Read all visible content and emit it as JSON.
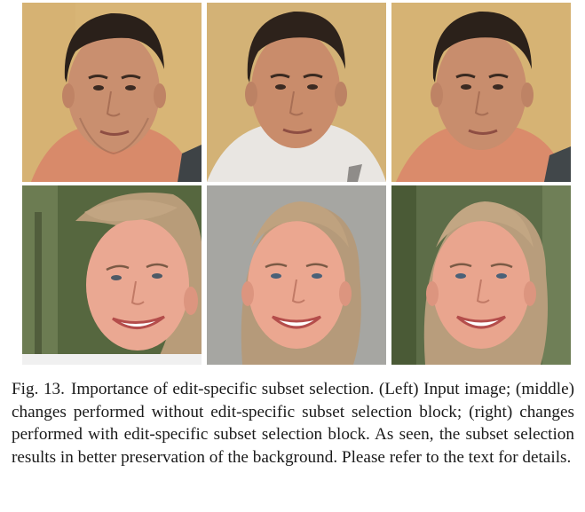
{
  "figure": {
    "label": "Fig. 13.",
    "caption": "Importance of edit-specific subset selection. (Left) Input image; (middle) changes performed without edit-specific subset selection block; (right) changes performed with edit-specific subset selection block. As seen, the subset selection results in better preservation of the background. Please refer to the text for details.",
    "columns": [
      "Input image",
      "without edit-specific subset selection block",
      "with edit-specific subset selection block"
    ],
    "rows": [
      "man portrait",
      "woman portrait"
    ],
    "colors": {
      "man_bg_warm": "#d9b77a",
      "man_bg_light": "#cfae71",
      "man_shirt_salmon": "#d98a6b",
      "man_shirt_white": "#e9e6e2",
      "woman_bg_green": "#5b6b47",
      "woman_bg_gray": "#a7a7a3",
      "skin_man": "#c98d6d",
      "skin_woman": "#e8a58f",
      "hair_man": "#2d221b",
      "hair_woman": "#b59a79"
    }
  }
}
